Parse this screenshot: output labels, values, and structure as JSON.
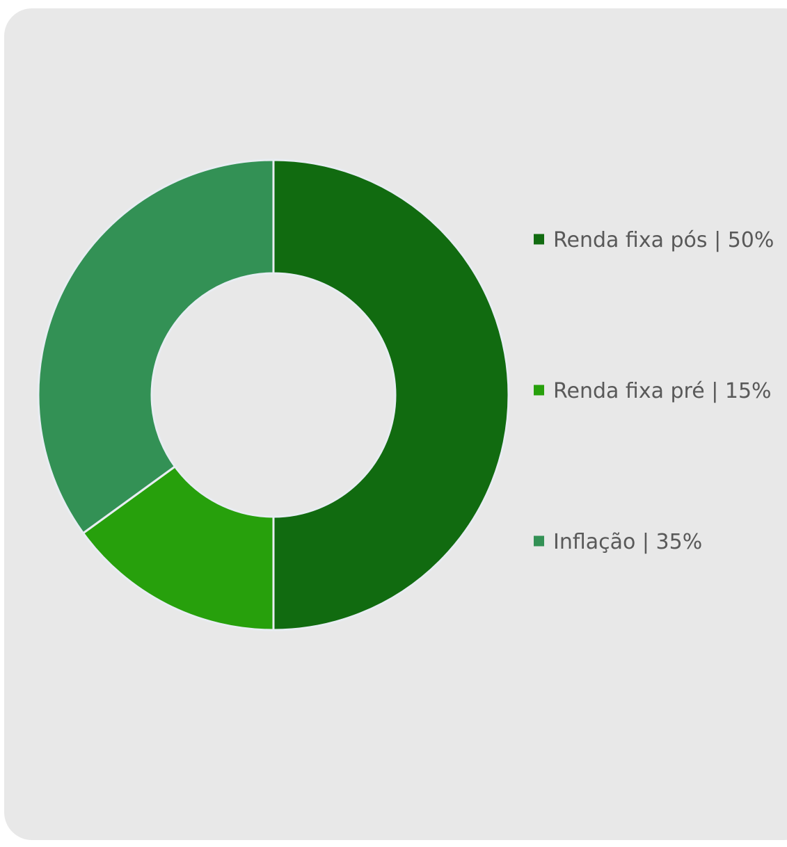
{
  "chart_data": {
    "type": "pie",
    "variant": "donut",
    "title": "",
    "slices": [
      {
        "label": "Renda fixa pós | 50%",
        "value": 50,
        "color": "#116b10"
      },
      {
        "label": "Renda fixa pré | 15%",
        "value": 15,
        "color": "#27a00c"
      },
      {
        "label": "Inflação | 35%",
        "value": 35,
        "color": "#339155"
      }
    ],
    "legend_position": "right",
    "separator_color": "#e8edf2"
  }
}
